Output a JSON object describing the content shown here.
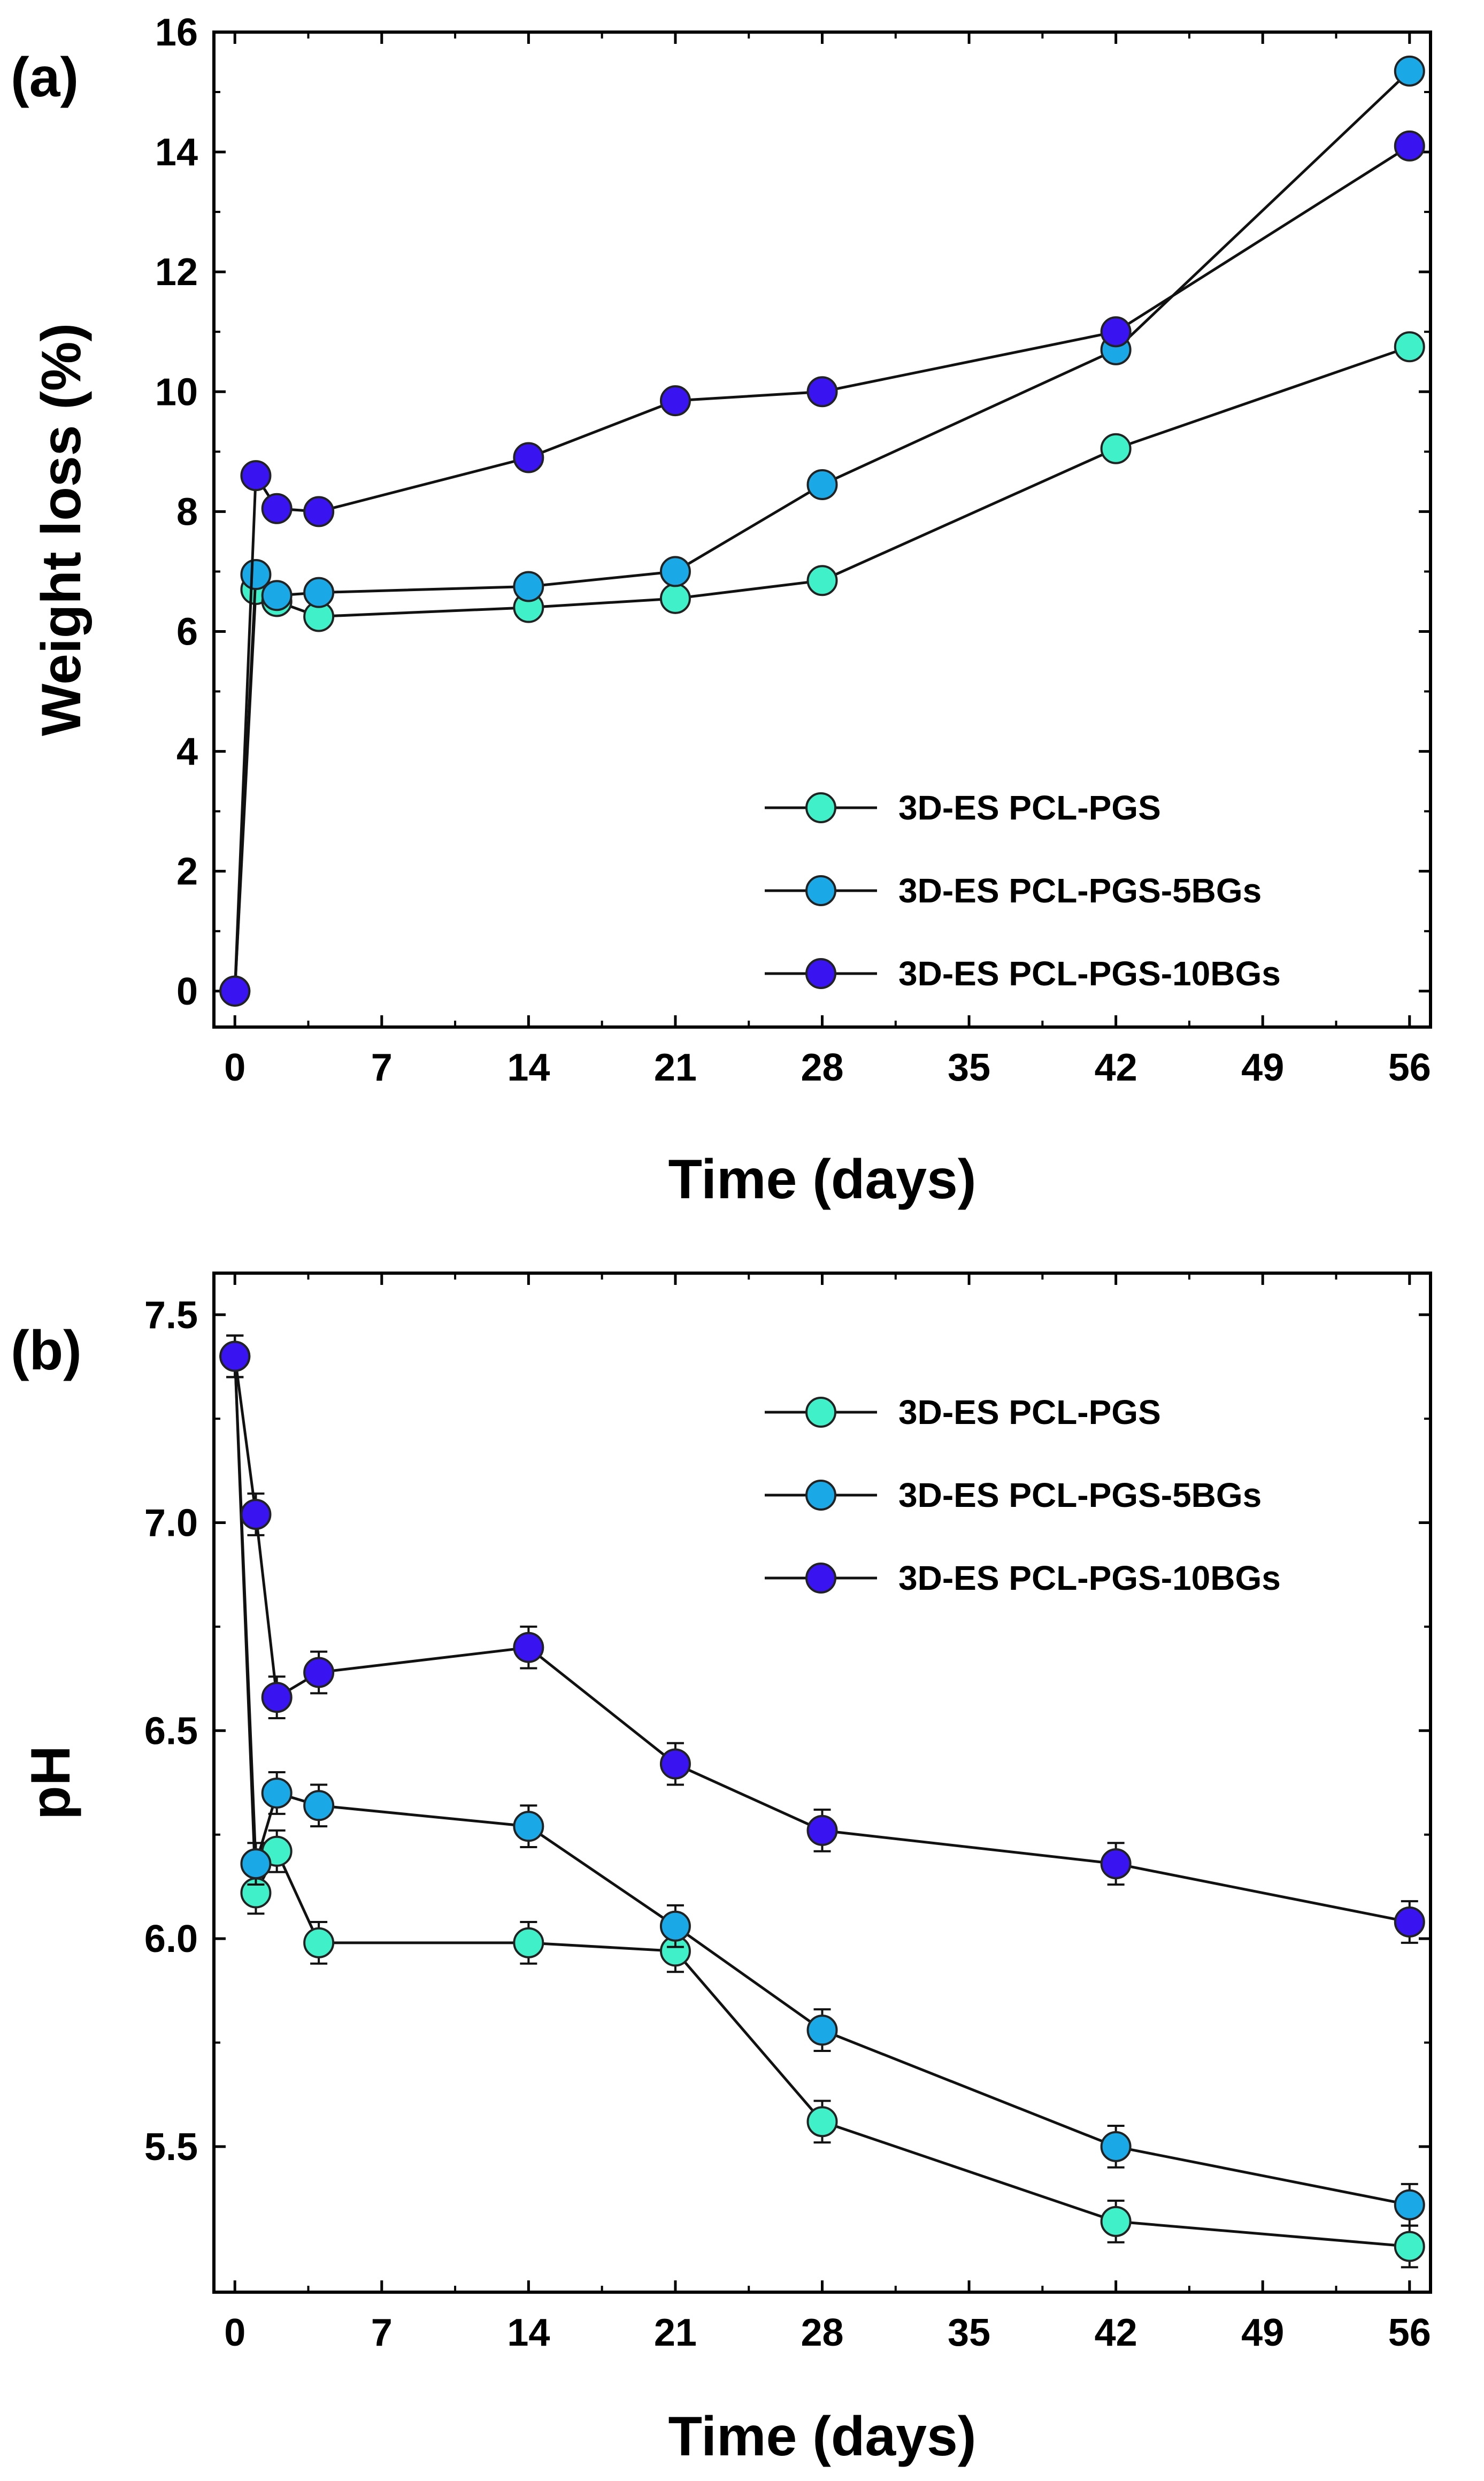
{
  "colors": {
    "series_0": "#3ff0c8",
    "series_1": "#1aa8e6",
    "series_2": "#3a14f0",
    "line": "#111111",
    "axis": "#000000",
    "background": "#ffffff"
  },
  "chart_data": [
    {
      "type": "line",
      "panel_label": "(a)",
      "title": "",
      "xlabel": "Time (days)",
      "ylabel": "Weight loss (%)",
      "xlim": [
        -1,
        57
      ],
      "ylim": [
        -0.6,
        16
      ],
      "x_ticks": [
        0,
        7,
        14,
        21,
        28,
        35,
        42,
        49,
        56
      ],
      "x_tick_labels": [
        "0",
        "7",
        "14",
        "21",
        "28",
        "35",
        "42",
        "49",
        "56"
      ],
      "y_ticks": [
        0,
        2,
        4,
        6,
        8,
        10,
        12,
        14,
        16
      ],
      "y_tick_labels": [
        "0",
        "2",
        "4",
        "6",
        "8",
        "10",
        "12",
        "14",
        "16"
      ],
      "legend_position": "bottom-right",
      "error_bars": false,
      "series": [
        {
          "name": "3D-ES PCL-PGS",
          "x": [
            0,
            1,
            2,
            4,
            14,
            21,
            28,
            42,
            56
          ],
          "y": [
            0,
            6.7,
            6.5,
            6.25,
            6.4,
            6.55,
            6.85,
            9.05,
            10.75
          ]
        },
        {
          "name": "3D-ES PCL-PGS-5BGs",
          "x": [
            0,
            1,
            2,
            4,
            14,
            21,
            28,
            42,
            56
          ],
          "y": [
            0,
            6.95,
            6.6,
            6.65,
            6.75,
            7.0,
            8.45,
            10.7,
            15.35
          ]
        },
        {
          "name": "3D-ES PCL-PGS-10BGs",
          "x": [
            0,
            1,
            2,
            4,
            14,
            21,
            28,
            42,
            56
          ],
          "y": [
            0,
            8.6,
            8.05,
            8.0,
            8.9,
            9.85,
            10.0,
            11.0,
            14.1
          ]
        }
      ]
    },
    {
      "type": "line",
      "panel_label": "(b)",
      "title": "",
      "xlabel": "Time (days)",
      "ylabel": "pH",
      "xlim": [
        -1,
        57
      ],
      "ylim": [
        5.15,
        7.6
      ],
      "x_ticks": [
        0,
        7,
        14,
        21,
        28,
        35,
        42,
        49,
        56
      ],
      "x_tick_labels": [
        "0",
        "7",
        "14",
        "21",
        "28",
        "35",
        "42",
        "49",
        "56"
      ],
      "y_ticks": [
        5.5,
        6.0,
        6.5,
        7.0,
        7.5
      ],
      "y_tick_labels": [
        "5.5",
        "6.0",
        "6.5",
        "7.0",
        "7.5"
      ],
      "legend_position": "top-right",
      "error_bars": true,
      "error_size": 0.05,
      "series": [
        {
          "name": "3D-ES PCL-PGS",
          "x": [
            0,
            1,
            2,
            4,
            14,
            21,
            28,
            42,
            56
          ],
          "y": [
            7.4,
            6.11,
            6.21,
            5.99,
            5.99,
            5.97,
            5.56,
            5.32,
            5.26
          ]
        },
        {
          "name": "3D-ES PCL-PGS-5BGs",
          "x": [
            0,
            1,
            2,
            4,
            14,
            21,
            28,
            42,
            56
          ],
          "y": [
            7.4,
            6.18,
            6.35,
            6.32,
            6.27,
            6.03,
            5.78,
            5.5,
            5.36
          ]
        },
        {
          "name": "3D-ES PCL-PGS-10BGs",
          "x": [
            0,
            1,
            2,
            4,
            14,
            21,
            28,
            42,
            56
          ],
          "y": [
            7.4,
            7.02,
            6.58,
            6.64,
            6.7,
            6.42,
            6.26,
            6.18,
            6.04
          ]
        }
      ]
    }
  ]
}
